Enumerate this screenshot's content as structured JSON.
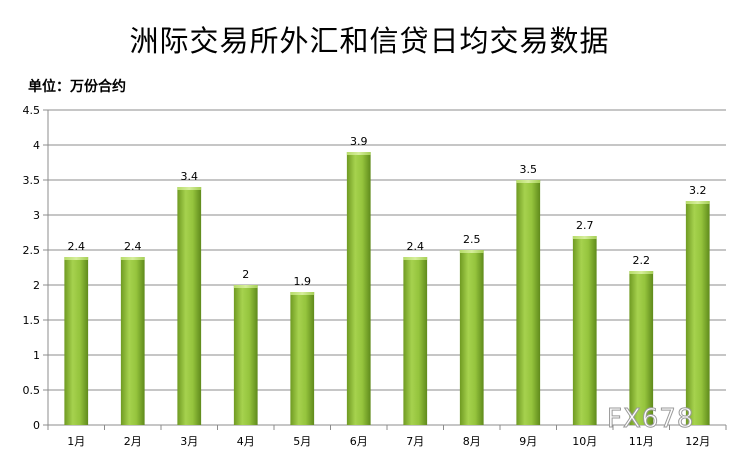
{
  "chart_data": {
    "type": "bar",
    "title": "洲际交易所外汇和信贷日均交易数据",
    "unit_label": "单位：万份合约",
    "categories": [
      "1月",
      "2月",
      "3月",
      "4月",
      "5月",
      "6月",
      "7月",
      "8月",
      "9月",
      "10月",
      "11月",
      "12月"
    ],
    "values": [
      2.4,
      2.4,
      3.4,
      2,
      1.9,
      3.9,
      2.4,
      2.5,
      3.5,
      2.7,
      2.2,
      3.2
    ],
    "data_labels": [
      "2.4",
      "2.4",
      "3.4",
      "2",
      "1.9",
      "3.9",
      "2.4",
      "2.5",
      "3.5",
      "2.7",
      "2.2",
      "3.2"
    ],
    "ylim": [
      0,
      4.5
    ],
    "yticks": [
      "0",
      "0.5",
      "1",
      "1.5",
      "2",
      "2.5",
      "3",
      "3.5",
      "4",
      "4.5"
    ],
    "grid": true,
    "legend": "none",
    "bar_color": "#8dc03a"
  },
  "watermark": "FX678"
}
